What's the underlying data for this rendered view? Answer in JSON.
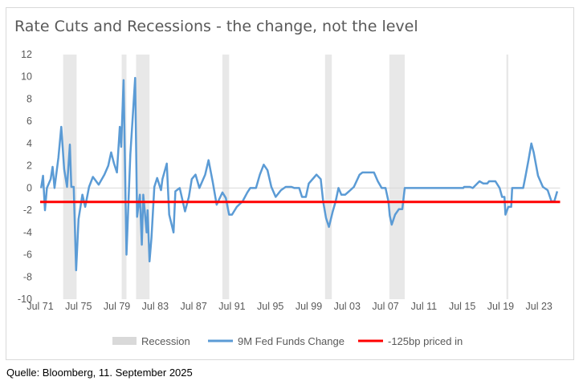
{
  "chart_data": {
    "type": "line",
    "title": "Rate Cuts and Recessions - the change, not the level",
    "xlabel": "",
    "ylabel": "",
    "ylim": [
      -10,
      12
    ],
    "yticks": [
      12,
      10,
      8,
      6,
      4,
      2,
      0,
      -2,
      -4,
      -6,
      -8,
      -10
    ],
    "xlim": [
      1971.5,
      2025.7
    ],
    "xticks": [
      {
        "label": "Jul 71",
        "x": 1971.5
      },
      {
        "label": "Jul 75",
        "x": 1975.5
      },
      {
        "label": "Jul 79",
        "x": 1979.5
      },
      {
        "label": "Jul 83",
        "x": 1983.5
      },
      {
        "label": "Jul 87",
        "x": 1987.5
      },
      {
        "label": "Jul 91",
        "x": 1991.5
      },
      {
        "label": "Jul 95",
        "x": 1995.5
      },
      {
        "label": "Jul 99",
        "x": 1999.5
      },
      {
        "label": "Jul 03",
        "x": 2003.5
      },
      {
        "label": "Jul 07",
        "x": 2007.5
      },
      {
        "label": "Jul 11",
        "x": 2011.5
      },
      {
        "label": "Jul 15",
        "x": 2015.5
      },
      {
        "label": "Jul 19",
        "x": 2019.5
      },
      {
        "label": "Jul 23",
        "x": 2023.5
      }
    ],
    "grid": false,
    "legend_position": "bottom",
    "recessions": {
      "name": "Recession",
      "color": "#d9d9d9",
      "periods": [
        [
          1973.9,
          1975.3
        ],
        [
          1980.0,
          1980.5
        ],
        [
          1981.5,
          1982.9
        ],
        [
          1990.5,
          1991.2
        ],
        [
          2001.2,
          2001.9
        ],
        [
          2007.9,
          2009.5
        ],
        [
          2020.1,
          2020.3
        ]
      ]
    },
    "series": [
      {
        "name": "9M Fed Funds Change",
        "color": "#5b9bd5",
        "points": [
          [
            1971.6,
            0
          ],
          [
            1971.8,
            1.1
          ],
          [
            1972.0,
            -2
          ],
          [
            1972.2,
            0
          ],
          [
            1972.6,
            0.8
          ],
          [
            1972.8,
            1.9
          ],
          [
            1973.0,
            0
          ],
          [
            1973.4,
            2.7
          ],
          [
            1973.7,
            5.5
          ],
          [
            1974.0,
            1.7
          ],
          [
            1974.3,
            0.1
          ],
          [
            1974.6,
            3.9
          ],
          [
            1974.75,
            0.1
          ],
          [
            1975.0,
            0.1
          ],
          [
            1975.25,
            -7.4
          ],
          [
            1975.5,
            -2.8
          ],
          [
            1975.9,
            -0.6
          ],
          [
            1976.2,
            -1.7
          ],
          [
            1976.6,
            0.1
          ],
          [
            1977.0,
            1.0
          ],
          [
            1977.6,
            0.3
          ],
          [
            1978.2,
            1.2
          ],
          [
            1978.6,
            2
          ],
          [
            1978.9,
            3.2
          ],
          [
            1979.2,
            2.2
          ],
          [
            1979.5,
            1.4
          ],
          [
            1979.8,
            5.5
          ],
          [
            1979.95,
            3.7
          ],
          [
            1980.2,
            9.7
          ],
          [
            1980.5,
            -6
          ],
          [
            1980.7,
            -1.4
          ],
          [
            1980.9,
            3
          ],
          [
            1981.15,
            6.4
          ],
          [
            1981.4,
            9.9
          ],
          [
            1981.6,
            -2.6
          ],
          [
            1981.9,
            -0.6
          ],
          [
            1982.1,
            -5.1
          ],
          [
            1982.25,
            -0.6
          ],
          [
            1982.6,
            -4
          ],
          [
            1982.7,
            -2
          ],
          [
            1982.9,
            -6.6
          ],
          [
            1983.1,
            -4.5
          ],
          [
            1983.4,
            0.1
          ],
          [
            1983.7,
            0.9
          ],
          [
            1984.1,
            -0.2
          ],
          [
            1984.25,
            0.8
          ],
          [
            1984.7,
            2.2
          ],
          [
            1984.95,
            -2.4
          ],
          [
            1985.4,
            -4
          ],
          [
            1985.6,
            -0.3
          ],
          [
            1986.05,
            0
          ],
          [
            1986.6,
            -2.1
          ],
          [
            1987.0,
            -0.8
          ],
          [
            1987.3,
            0.8
          ],
          [
            1987.7,
            1.2
          ],
          [
            1988.1,
            0
          ],
          [
            1988.7,
            1.2
          ],
          [
            1989.05,
            2.5
          ],
          [
            1989.5,
            0.5
          ],
          [
            1989.9,
            -1.5
          ],
          [
            1990.5,
            -0.4
          ],
          [
            1990.85,
            -0.9
          ],
          [
            1991.2,
            -2.4
          ],
          [
            1991.5,
            -2.4
          ],
          [
            1992.0,
            -1.7
          ],
          [
            1992.6,
            -1.2
          ],
          [
            1993.1,
            -0.4
          ],
          [
            1993.4,
            0
          ],
          [
            1994.0,
            0
          ],
          [
            1994.4,
            1.2
          ],
          [
            1994.8,
            2.1
          ],
          [
            1995.2,
            1.6
          ],
          [
            1995.6,
            0.1
          ],
          [
            1996.05,
            -0.8
          ],
          [
            1996.6,
            -0.2
          ],
          [
            1997.1,
            0.1
          ],
          [
            1997.7,
            0.1
          ],
          [
            1998.0,
            0
          ],
          [
            1998.5,
            0
          ],
          [
            1998.8,
            -0.8
          ],
          [
            1999.2,
            -0.8
          ],
          [
            1999.5,
            0.4
          ],
          [
            2000.1,
            1.0
          ],
          [
            2000.3,
            1.2
          ],
          [
            2000.75,
            0.8
          ],
          [
            2001.0,
            -1.2
          ],
          [
            2001.3,
            -2.7
          ],
          [
            2001.6,
            -3.5
          ],
          [
            2002.0,
            -2.1
          ],
          [
            2002.3,
            -1.2
          ],
          [
            2002.6,
            0
          ],
          [
            2002.9,
            -0.6
          ],
          [
            2003.3,
            -0.6
          ],
          [
            2003.7,
            -0.3
          ],
          [
            2004.2,
            0.1
          ],
          [
            2004.8,
            1.2
          ],
          [
            2005.1,
            1.4
          ],
          [
            2006.3,
            1.4
          ],
          [
            2006.7,
            0.6
          ],
          [
            2007.1,
            0
          ],
          [
            2007.5,
            0
          ],
          [
            2007.8,
            -1.2
          ],
          [
            2007.95,
            -2.5
          ],
          [
            2008.15,
            -3.3
          ],
          [
            2008.5,
            -2.4
          ],
          [
            2008.9,
            -1.9
          ],
          [
            2009.25,
            -1.9
          ],
          [
            2009.5,
            0
          ],
          [
            2015.6,
            0
          ],
          [
            2015.7,
            0.1
          ],
          [
            2016.3,
            0.1
          ],
          [
            2016.6,
            0
          ],
          [
            2017.3,
            0.6
          ],
          [
            2017.7,
            0.4
          ],
          [
            2018.1,
            0.4
          ],
          [
            2018.3,
            0.6
          ],
          [
            2018.95,
            0.6
          ],
          [
            2019.4,
            0
          ],
          [
            2019.65,
            -0.8
          ],
          [
            2019.9,
            -0.8
          ],
          [
            2020.0,
            -2.4
          ],
          [
            2020.3,
            -1.7
          ],
          [
            2020.6,
            -1.7
          ],
          [
            2020.7,
            0
          ],
          [
            2021.85,
            0
          ],
          [
            2022.1,
            1.1
          ],
          [
            2022.4,
            2.5
          ],
          [
            2022.7,
            4.0
          ],
          [
            2022.95,
            3.2
          ],
          [
            2023.4,
            1.1
          ],
          [
            2023.9,
            0.1
          ],
          [
            2024.4,
            -0.2
          ],
          [
            2024.8,
            -1.2
          ],
          [
            2025.1,
            -1.2
          ],
          [
            2025.4,
            -0.3
          ]
        ]
      },
      {
        "name": "-125bp priced in",
        "color": "#ff0000",
        "value": -1.25
      }
    ]
  },
  "source": "Quelle: Bloomberg, 11. September 2025"
}
